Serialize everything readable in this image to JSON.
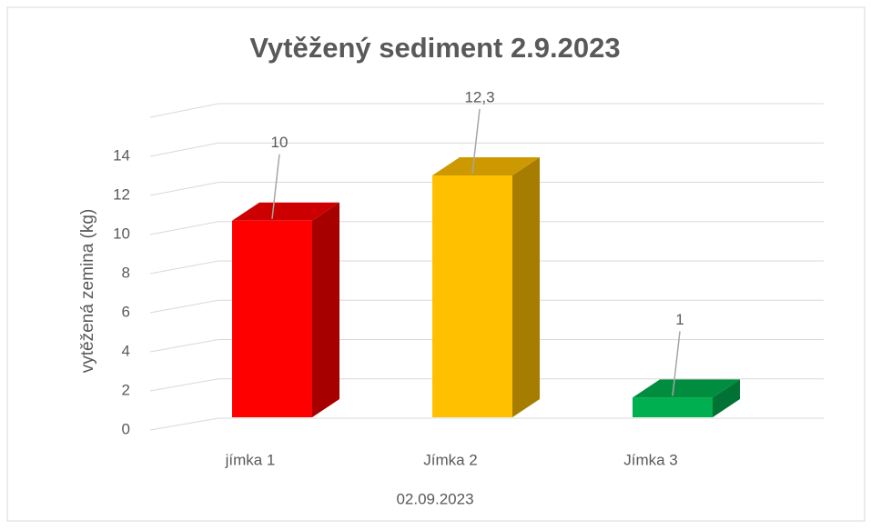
{
  "chart_data": {
    "type": "bar3d",
    "title": "Vytěžený sediment 2.9.2023",
    "x_label": "02.09.2023",
    "y_label": "vytěžená zemina (kg)",
    "categories": [
      "jímka 1",
      "Jímka 2",
      "Jímka 3"
    ],
    "values": [
      10,
      12.3,
      1
    ],
    "value_labels": [
      "10",
      "12,3",
      "1"
    ],
    "colors": [
      "#ff0000",
      "#ffc000",
      "#00b050"
    ],
    "ylim": [
      0,
      16
    ],
    "yticks": [
      0,
      2,
      4,
      6,
      8,
      10,
      12,
      14
    ],
    "grid": true
  }
}
